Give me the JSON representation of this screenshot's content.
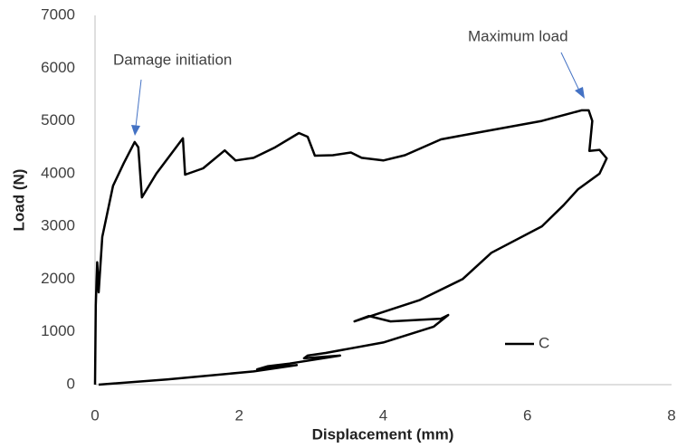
{
  "chart_data": {
    "type": "line",
    "x_label": "Displacement (mm)",
    "y_label": "Load (N)",
    "annotations": [
      "Damage initiation",
      "Maximum load"
    ],
    "xlim": [
      0,
      8
    ],
    "xticks": [
      0,
      2,
      4,
      6,
      8
    ],
    "ylim": [
      0,
      7000
    ],
    "yticks": [
      0,
      1000,
      2000,
      3000,
      4000,
      5000,
      6000,
      7000
    ],
    "grid": false,
    "legend": "right",
    "series": [
      {
        "name": "C",
        "color": "#000000",
        "x": [
          0,
          0.01,
          0.03,
          0.05,
          0.1,
          0.25,
          0.4,
          0.55,
          0.6,
          0.65,
          0.85,
          1.22,
          1.25,
          1.5,
          1.8,
          1.95,
          2.2,
          2.5,
          2.83,
          2.95,
          3.05,
          3.3,
          3.55,
          3.7,
          4.0,
          4.3,
          4.8,
          5.2,
          6.2,
          6.75,
          6.85,
          6.9,
          6.86,
          7.0,
          7.1,
          7.0,
          6.7,
          6.5,
          6.2,
          5.5,
          5.1,
          4.5,
          3.6,
          3.8,
          4.1,
          4.8,
          4.9,
          4.7,
          4.0,
          3.2,
          2.95,
          2.9,
          3.4,
          2.7,
          2.4,
          2.25,
          2.8,
          2.2,
          1.0,
          0.05
        ],
        "values": [
          0,
          1500,
          2320,
          1750,
          2800,
          3770,
          4200,
          4600,
          4500,
          3550,
          4000,
          4670,
          3980,
          4100,
          4440,
          4250,
          4300,
          4500,
          4770,
          4700,
          4340,
          4350,
          4400,
          4300,
          4250,
          4350,
          4650,
          4750,
          5000,
          5200,
          5200,
          5000,
          4430,
          4450,
          4290,
          4000,
          3700,
          3400,
          3000,
          2500,
          2000,
          1600,
          1200,
          1300,
          1200,
          1250,
          1320,
          1100,
          800,
          600,
          550,
          500,
          550,
          400,
          350,
          290,
          370,
          250,
          100,
          0
        ]
      }
    ]
  }
}
